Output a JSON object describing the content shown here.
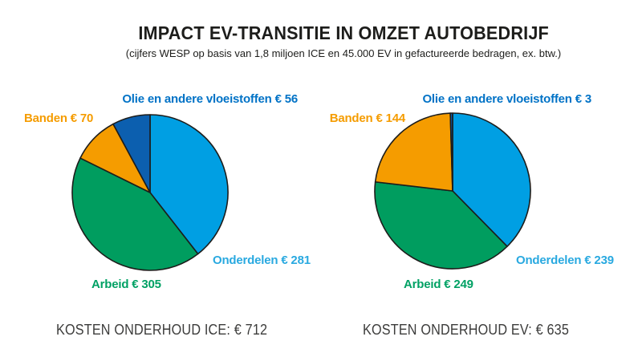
{
  "header": {
    "title": "IMPACT EV-TRANSITIE IN OMZET AUTOBEDRIJF",
    "subtitle": "(cijfers WESP op basis van 1,8 miljoen ICE en 45.000 EV in gefactureerde bedragen, ex. btw.)"
  },
  "colors": {
    "background": "#ffffff",
    "outline": "#1d1d1b",
    "title_text": "#1d1d1b",
    "total_text": "#3c3c3b",
    "onderdelen": "#009FE3",
    "onderdelen_label": "#29A9E0",
    "arbeid": "#009D5F",
    "arbeid_label": "#00A164",
    "banden": "#F59C00",
    "banden_label": "#F59C00",
    "olie": "#0C5FAF",
    "olie_label": "#0072C6"
  },
  "chart_data": [
    {
      "type": "pie",
      "name": "ICE",
      "start_angle": "top",
      "direction": "clockwise",
      "legend": "none",
      "labels_position": "outside",
      "total": 712,
      "total_label": "KOSTEN ONDERHOUD ICE: € 712",
      "slices": [
        {
          "id": "onderdelen",
          "label": "Onderdelen",
          "value": 281,
          "display": "Onderdelen € 281",
          "color": "#009FE3"
        },
        {
          "id": "arbeid",
          "label": "Arbeid",
          "value": 305,
          "display": "Arbeid € 305",
          "color": "#009D5F"
        },
        {
          "id": "banden",
          "label": "Banden",
          "value": 70,
          "display": "Banden € 70",
          "color": "#F59C00"
        },
        {
          "id": "olie",
          "label": "Olie en andere vloeistoffen",
          "value": 56,
          "display": "Olie en andere vloeistoffen € 56",
          "color": "#0C5FAF"
        }
      ]
    },
    {
      "type": "pie",
      "name": "EV",
      "start_angle": "top",
      "direction": "clockwise",
      "legend": "none",
      "labels_position": "outside",
      "total": 635,
      "total_label": "KOSTEN ONDERHOUD EV: € 635",
      "slices": [
        {
          "id": "onderdelen",
          "label": "Onderdelen",
          "value": 239,
          "display": "Onderdelen € 239",
          "color": "#009FE3"
        },
        {
          "id": "arbeid",
          "label": "Arbeid",
          "value": 249,
          "display": "Arbeid € 249",
          "color": "#009D5F"
        },
        {
          "id": "banden",
          "label": "Banden",
          "value": 144,
          "display": "Banden € 144",
          "color": "#F59C00"
        },
        {
          "id": "olie",
          "label": "Olie en andere vloeistoffen",
          "value": 3,
          "display": "Olie en andere vloeistoffen € 3",
          "color": "#0C5FAF"
        }
      ]
    }
  ]
}
